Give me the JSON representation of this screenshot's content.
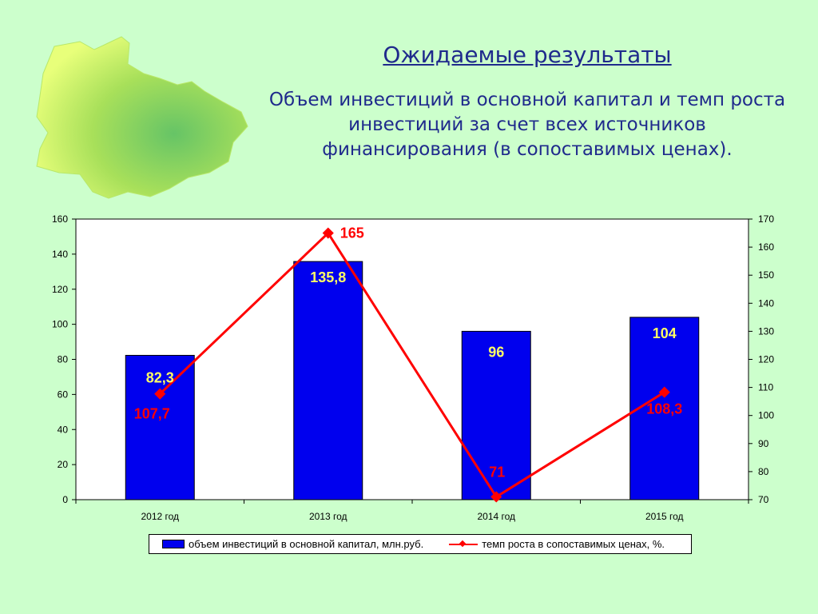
{
  "header": {
    "title": "Ожидаемые результаты",
    "subtitle": "Объем инвестиций в основной капитал  и темп роста инвестиций за счет всех источников финансирования (в сопоставимых ценах)."
  },
  "colors": {
    "background": "#ccffcc",
    "title": "#1f2a8c",
    "bars": "#0000ee",
    "line": "#ff0000",
    "bar_labels": "#ffff66",
    "line_labels": "#ff0000"
  },
  "chart_data": {
    "type": "bar",
    "categories": [
      "2012 год",
      "2013 год",
      "2014 год",
      "2015 год"
    ],
    "series": [
      {
        "name": "объем инвестиций в основной капитал, млн.руб.",
        "type": "bar",
        "axis": "left",
        "values": [
          82.3,
          135.8,
          96,
          104
        ],
        "labels": [
          "82,3",
          "135,8",
          "96",
          "104"
        ]
      },
      {
        "name": "темп роста в сопоставимых ценах, %.",
        "type": "line",
        "axis": "right",
        "values": [
          107.7,
          165,
          71,
          108.3
        ],
        "labels": [
          "107,7",
          "165",
          "71",
          "108,3"
        ]
      }
    ],
    "ylim_left": [
      0,
      160
    ],
    "yticks_left": [
      0,
      20,
      40,
      60,
      80,
      100,
      120,
      140,
      160
    ],
    "ylim_right": [
      70,
      170
    ],
    "yticks_right": [
      70,
      80,
      90,
      100,
      110,
      120,
      130,
      140,
      150,
      160,
      170
    ],
    "grid": false,
    "legend_position": "bottom"
  }
}
